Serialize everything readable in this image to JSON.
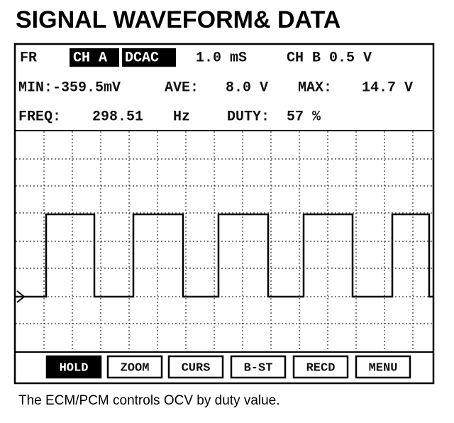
{
  "header": {
    "title": "SIGNAL WAVEFORM& DATA"
  },
  "screen": {
    "row1": {
      "mode": "FR",
      "tag1": "CH A",
      "tag2": "DCAC",
      "time": "1.0 mS",
      "channel": "CH B 0.5 V"
    },
    "row2": {
      "min": "MIN:-359.5mV",
      "ave_label": "AVE:",
      "ave": "8.0 V",
      "max_label": "MAX:",
      "max": "14.7 V"
    },
    "row3": {
      "freq_label": "FREQ:",
      "freq": "298.51",
      "freq_unit": "Hz",
      "duty_label": "DUTY:",
      "duty": "57 %"
    },
    "buttons": [
      "HOLD",
      "ZOOM",
      "CURS",
      "B-ST",
      "RECD",
      "MENU"
    ]
  },
  "caption": "The ECM/PCM controls OCV by duty value."
}
